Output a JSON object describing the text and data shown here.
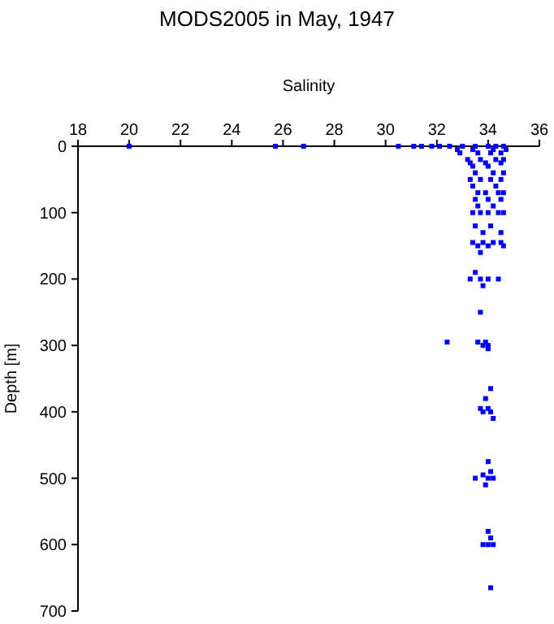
{
  "chart_data": {
    "type": "scatter",
    "title": "MODS2005 in May, 1947",
    "xlabel": "Salinity",
    "ylabel": "Depth [m]",
    "xlim": [
      18,
      36
    ],
    "xticks": [
      18,
      20,
      22,
      24,
      26,
      28,
      30,
      32,
      34,
      36
    ],
    "ylim": [
      700,
      0
    ],
    "yticks": [
      0,
      100,
      200,
      300,
      400,
      500,
      600,
      700
    ],
    "marker": "square",
    "series": [
      {
        "color": "#0000ff",
        "x": [
          20.0,
          25.7,
          26.8,
          30.5,
          31.1,
          31.4,
          31.8,
          32.1,
          32.5,
          33.0,
          33.5,
          34.0,
          34.3,
          34.6,
          32.8,
          33.4,
          34.2,
          34.7,
          32.9,
          33.6,
          34.1,
          34.5,
          33.2,
          33.7,
          34.3,
          34.6,
          33.3,
          33.9,
          34.5,
          33.4,
          34.0,
          33.5,
          34.2,
          34.6,
          33.3,
          33.7,
          34.1,
          34.5,
          33.4,
          34.3,
          33.6,
          33.9,
          34.4,
          34.6,
          33.5,
          34.0,
          34.5,
          33.6,
          34.2,
          33.4,
          33.7,
          34.0,
          34.4,
          34.6,
          33.5,
          34.1,
          33.8,
          34.5,
          33.4,
          33.8,
          34.2,
          34.5,
          33.6,
          34.0,
          34.6,
          33.7,
          33.5,
          33.3,
          33.7,
          34.0,
          34.4,
          33.8,
          33.7,
          32.4,
          33.6,
          33.9,
          33.8,
          34.0,
          34.0,
          34.1,
          33.9,
          33.7,
          34.0,
          33.8,
          34.1,
          34.2,
          34.0,
          34.1,
          33.8,
          33.5,
          34.0,
          34.2,
          33.9,
          34.0,
          34.1,
          33.8,
          34.0,
          34.2,
          34.1
        ],
        "values": [
          0,
          0,
          0,
          0,
          0,
          0,
          0,
          0,
          0,
          0,
          0,
          0,
          0,
          0,
          5,
          5,
          5,
          5,
          10,
          10,
          10,
          10,
          20,
          20,
          20,
          20,
          25,
          25,
          25,
          30,
          30,
          40,
          40,
          40,
          50,
          50,
          50,
          50,
          60,
          60,
          70,
          70,
          70,
          70,
          80,
          80,
          80,
          90,
          90,
          100,
          100,
          100,
          100,
          100,
          120,
          120,
          130,
          130,
          145,
          145,
          145,
          145,
          150,
          150,
          150,
          160,
          190,
          200,
          200,
          200,
          200,
          210,
          250,
          295,
          295,
          295,
          300,
          300,
          305,
          365,
          380,
          395,
          395,
          400,
          400,
          410,
          475,
          490,
          495,
          500,
          500,
          500,
          510,
          580,
          590,
          600,
          600,
          600,
          665
        ]
      }
    ]
  }
}
